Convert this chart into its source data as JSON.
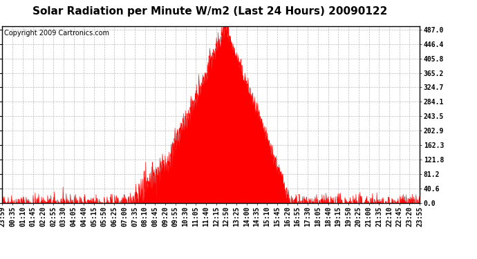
{
  "title": "Solar Radiation per Minute W/m2 (Last 24 Hours) 20090122",
  "copyright": "Copyright 2009 Cartronics.com",
  "fill_color": "#FF0000",
  "line_color": "#FF0000",
  "dashed_line_color": "#FF0000",
  "bg_color": "#FFFFFF",
  "grid_color": "#AAAAAA",
  "ytick_labels": [
    0.0,
    40.6,
    81.2,
    121.8,
    162.3,
    202.9,
    243.5,
    284.1,
    324.7,
    365.2,
    405.8,
    446.4,
    487.0
  ],
  "ymax": 487.0,
  "ymin": 0.0,
  "title_fontsize": 11,
  "copyright_fontsize": 7,
  "tick_labelsize": 7,
  "x_tick_labels": [
    "23:59",
    "00:35",
    "01:10",
    "01:45",
    "02:20",
    "02:55",
    "03:30",
    "04:05",
    "04:40",
    "05:15",
    "05:50",
    "06:25",
    "07:00",
    "07:35",
    "08:10",
    "08:45",
    "09:20",
    "09:55",
    "10:30",
    "11:05",
    "11:40",
    "12:15",
    "12:50",
    "13:25",
    "14:00",
    "14:35",
    "15:10",
    "15:45",
    "16:20",
    "16:55",
    "17:30",
    "18:05",
    "18:40",
    "19:15",
    "19:50",
    "20:25",
    "21:00",
    "21:35",
    "22:10",
    "22:45",
    "23:20",
    "23:55"
  ]
}
